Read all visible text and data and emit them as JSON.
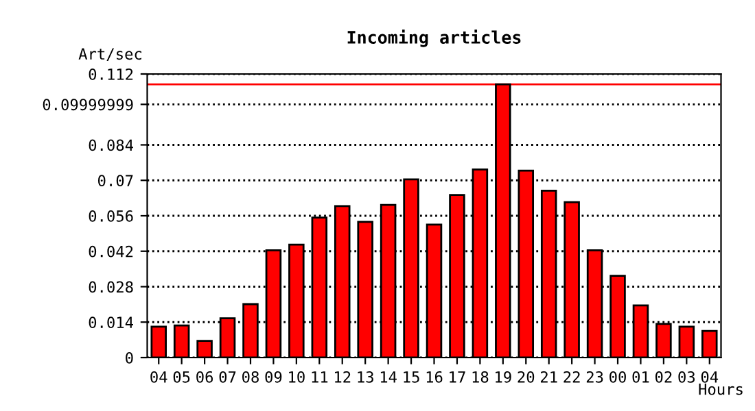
{
  "chart_data": {
    "type": "bar",
    "title": "Incoming articles",
    "ylabel": "Art/sec",
    "xlabel": "Hours",
    "categories": [
      "04",
      "05",
      "06",
      "07",
      "08",
      "09",
      "10",
      "11",
      "12",
      "13",
      "14",
      "15",
      "16",
      "17",
      "18",
      "19",
      "20",
      "21",
      "22",
      "23",
      "00",
      "01",
      "02",
      "03",
      "04"
    ],
    "series": [
      {
        "color": "#ff0000",
        "values": [
          0.0122,
          0.0127,
          0.0066,
          0.0155,
          0.0211,
          0.0424,
          0.0446,
          0.0553,
          0.0598,
          0.0536,
          0.0603,
          0.0704,
          0.0525,
          0.0642,
          0.0743,
          0.1079,
          0.0738,
          0.0659,
          0.0614,
          0.0424,
          0.0323,
          0.0206,
          0.0133,
          0.0122,
          0.0105
        ]
      }
    ],
    "ylim": [
      0,
      0.112
    ],
    "yticks": [
      0,
      0.014,
      0.028,
      0.042,
      0.056,
      0.07,
      0.084,
      0.09999999,
      0.112
    ],
    "ref_lines": [
      {
        "axis": "y",
        "value": 0.1079,
        "color": "#ff0000",
        "line_style": "solid"
      }
    ],
    "grid": "y",
    "line_style": "dotted"
  }
}
